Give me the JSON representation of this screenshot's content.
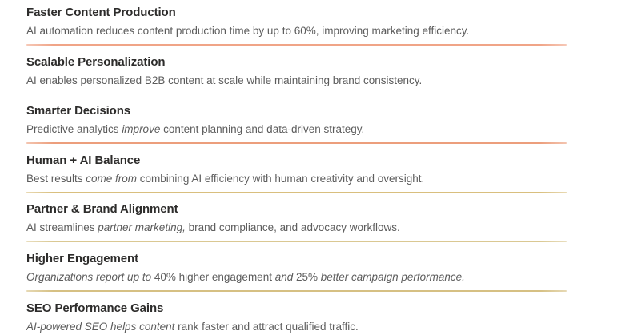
{
  "page": {
    "background": "#ffffff"
  },
  "colors": {
    "heading_text": "#2d2c2b",
    "body_text": "#5c5c5c",
    "divider_salmon": "#efa183",
    "divider_gold": "#d9c38a"
  },
  "sections": [
    {
      "title": "Faster Content Production",
      "body_spans": [
        {
          "text": "AI automation reduces content production time by up to 60%, improving marketing efficiency.",
          "italic": false
        }
      ],
      "divider_color": "#f0a487"
    },
    {
      "title": "Scalable Personalization",
      "body_spans": [
        {
          "text": "AI enables personalized B2B content at scale while maintaining brand consistency.",
          "italic": false
        }
      ],
      "divider_color": "#efa285"
    },
    {
      "title": "Smarter Decisions",
      "body_spans": [
        {
          "text": "Predictive analytics ",
          "italic": false
        },
        {
          "text": "improve",
          "italic": true
        },
        {
          "text": " content planning and data-driven strategy.",
          "italic": false
        }
      ],
      "divider_color": "#ec9e7c"
    },
    {
      "title": "Human + AI Balance",
      "body_spans": [
        {
          "text": "Best results ",
          "italic": false
        },
        {
          "text": "come from",
          "italic": true
        },
        {
          "text": " combining AI efficiency with human creativity and oversight.",
          "italic": false
        }
      ],
      "divider_color": "#d9bf7e"
    },
    {
      "title": "Partner & Brand Alignment",
      "body_spans": [
        {
          "text": "AI streamlines ",
          "italic": false
        },
        {
          "text": "partner marketing,",
          "italic": true
        },
        {
          "text": " brand compliance, and advocacy workflows.",
          "italic": false
        }
      ],
      "divider_color": "#dac892"
    },
    {
      "title": "Higher Engagement",
      "body_spans": [
        {
          "text": "Organizations report up to",
          "italic": true
        },
        {
          "text": " 40% higher engagement ",
          "italic": false
        },
        {
          "text": "and",
          "italic": true
        },
        {
          "text": " 25% ",
          "italic": false
        },
        {
          "text": "better campaign performance.",
          "italic": true
        }
      ],
      "divider_color": "#d6c083"
    },
    {
      "title": "SEO Performance Gains",
      "body_spans": [
        {
          "text": "AI-powered SEO helps content",
          "italic": true
        },
        {
          "text": " rank faster and attract qualified traffic.",
          "italic": false
        }
      ],
      "divider_color": null
    }
  ]
}
